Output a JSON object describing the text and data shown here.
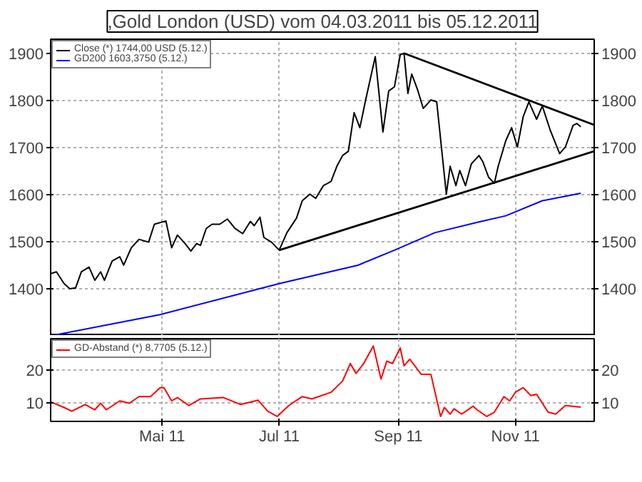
{
  "chart_data": [
    {
      "type": "line",
      "title": ",Gold London (USD) vom 04.03.2011 bis 05.12.2011",
      "legend": "top left",
      "grid": true,
      "tick_labels": "y",
      "xlim": [
        "2011-03-04",
        "2011-12-12"
      ],
      "xticks": [
        {
          "value": "2011-05-01",
          "label": null
        },
        {
          "value": "2011-07-01",
          "label": null
        },
        {
          "value": "2011-09-01",
          "label": null
        },
        {
          "value": "2011-11-01",
          "label": null
        }
      ],
      "ylim": [
        1300,
        1930
      ],
      "yticks": [
        1400,
        1500,
        1600,
        1700,
        1800,
        1900
      ],
      "y2lim": [
        1300,
        1930
      ],
      "y2ticks": [
        1400,
        1500,
        1600,
        1700,
        1800,
        1900
      ],
      "series": [
        {
          "name": "Close (*) 1744,00 USD (5.12.)",
          "color": "#000000",
          "x": [
            "2011-03-04",
            "2011-03-07",
            "2011-03-11",
            "2011-03-14",
            "2011-03-17",
            "2011-03-20",
            "2011-03-24",
            "2011-03-27",
            "2011-03-30",
            "2011-04-01",
            "2011-04-05",
            "2011-04-09",
            "2011-04-11",
            "2011-04-15",
            "2011-04-19",
            "2011-04-24",
            "2011-04-27",
            "2011-05-03",
            "2011-05-06",
            "2011-05-09",
            "2011-05-13",
            "2011-05-16",
            "2011-05-19",
            "2011-05-21",
            "2011-05-24",
            "2011-05-27",
            "2011-05-31",
            "2011-06-04",
            "2011-06-08",
            "2011-06-12",
            "2011-06-16",
            "2011-06-18",
            "2011-06-21",
            "2011-06-23",
            "2011-06-27",
            "2011-07-01",
            "2011-07-05",
            "2011-07-10",
            "2011-07-13",
            "2011-07-17",
            "2011-07-20",
            "2011-07-24",
            "2011-07-28",
            "2011-07-31",
            "2011-08-03",
            "2011-08-06",
            "2011-08-09",
            "2011-08-12",
            "2011-08-15",
            "2011-08-20",
            "2011-08-24",
            "2011-08-27",
            "2011-08-30",
            "2011-09-02",
            "2011-09-04",
            "2011-09-06",
            "2011-09-08",
            "2011-09-11",
            "2011-09-14",
            "2011-09-18",
            "2011-09-21",
            "2011-09-26",
            "2011-09-28",
            "2011-10-01",
            "2011-10-03",
            "2011-10-06",
            "2011-10-09",
            "2011-10-13",
            "2011-10-15",
            "2011-10-18",
            "2011-10-21",
            "2011-10-23",
            "2011-10-27",
            "2011-10-30",
            "2011-11-02",
            "2011-11-05",
            "2011-11-08",
            "2011-11-12",
            "2011-11-15",
            "2011-11-19",
            "2011-11-24",
            "2011-11-27",
            "2011-12-01",
            "2011-12-03",
            "2011-12-05"
          ],
          "values": [
            1432,
            1436,
            1411,
            1400,
            1402,
            1436,
            1446,
            1418,
            1436,
            1418,
            1459,
            1468,
            1450,
            1487,
            1505,
            1499,
            1537,
            1544,
            1487,
            1514,
            1496,
            1480,
            1496,
            1492,
            1528,
            1537,
            1537,
            1548,
            1528,
            1517,
            1543,
            1534,
            1552,
            1509,
            1499,
            1482,
            1519,
            1550,
            1587,
            1601,
            1592,
            1619,
            1628,
            1660,
            1683,
            1692,
            1774,
            1742,
            1801,
            1893,
            1733,
            1820,
            1829,
            1897,
            1900,
            1815,
            1856,
            1823,
            1783,
            1801,
            1797,
            1601,
            1660,
            1619,
            1651,
            1619,
            1665,
            1683,
            1670,
            1637,
            1624,
            1660,
            1715,
            1742,
            1701,
            1765,
            1797,
            1760,
            1788,
            1738,
            1687,
            1701,
            1747,
            1751,
            1744
          ]
        },
        {
          "name": "GD200 1603,3750 (5.12.)",
          "color": "#0000ff",
          "x": [
            "2011-03-04",
            "2011-04-30",
            "2011-07-01",
            "2011-08-11",
            "2011-08-30",
            "2011-09-20",
            "2011-10-13",
            "2011-10-27",
            "2011-11-15",
            "2011-12-05"
          ],
          "values": [
            1300,
            1345,
            1411,
            1450,
            1482,
            1519,
            1542,
            1555,
            1587,
            1603
          ]
        },
        {
          "type": "line",
          "color": "#000000",
          "x": [
            "2011-07-01",
            "2011-12-12"
          ],
          "values": [
            1482,
            1692
          ]
        },
        {
          "type": "line",
          "color": "#000000",
          "x": [
            "2011-09-04",
            "2011-12-12"
          ],
          "values": [
            1900,
            1748
          ]
        }
      ]
    },
    {
      "type": "line",
      "legend": "top left",
      "grid": true,
      "xlim": [
        "2011-03-04",
        "2011-12-12"
      ],
      "xticks": [
        {
          "value": "2011-05-01",
          "label": "Mai 11"
        },
        {
          "value": "2011-07-01",
          "label": "Jul 11"
        },
        {
          "value": "2011-09-01",
          "label": "Sep 11"
        },
        {
          "value": "2011-11-01",
          "label": "Nov 11"
        }
      ],
      "ylim": [
        4.5,
        29.5
      ],
      "yticks": [
        10,
        20
      ],
      "y2lim": [
        4.5,
        29.5
      ],
      "y2ticks": [
        10,
        20
      ],
      "series": [
        {
          "name": "GD-Abstand (*) 8,7705 (5.12.)",
          "color": "#ff0000",
          "x": [
            "2011-03-04",
            "2011-03-11",
            "2011-03-15",
            "2011-03-22",
            "2011-03-27",
            "2011-03-30",
            "2011-04-02",
            "2011-04-09",
            "2011-04-14",
            "2011-04-19",
            "2011-04-25",
            "2011-04-30",
            "2011-05-02",
            "2011-05-06",
            "2011-05-09",
            "2011-05-15",
            "2011-05-21",
            "2011-06-02",
            "2011-06-11",
            "2011-06-20",
            "2011-06-25",
            "2011-06-30",
            "2011-07-06",
            "2011-07-13",
            "2011-07-18",
            "2011-07-28",
            "2011-08-03",
            "2011-08-07",
            "2011-08-10",
            "2011-08-14",
            "2011-08-19",
            "2011-08-23",
            "2011-08-26",
            "2011-08-29",
            "2011-09-02",
            "2011-09-04",
            "2011-09-07",
            "2011-09-13",
            "2011-09-18",
            "2011-09-23",
            "2011-09-25",
            "2011-09-28",
            "2011-09-30",
            "2011-10-04",
            "2011-10-10",
            "2011-10-12",
            "2011-10-17",
            "2011-10-21",
            "2011-10-26",
            "2011-10-29",
            "2011-11-01",
            "2011-11-05",
            "2011-11-09",
            "2011-11-12",
            "2011-11-18",
            "2011-11-22",
            "2011-11-27",
            "2011-12-05"
          ],
          "values": [
            10.4,
            8.7,
            7.6,
            9.6,
            8.0,
            10,
            8.0,
            10.7,
            10,
            12,
            12,
            14.7,
            14.7,
            10.7,
            11.7,
            9.3,
            11.3,
            11.7,
            9.6,
            10.9,
            7.6,
            6.0,
            9.3,
            12,
            11.3,
            13.3,
            16.7,
            22,
            19,
            22,
            27.3,
            17.3,
            22.7,
            22,
            26.7,
            21.3,
            23.3,
            18.7,
            18.7,
            6,
            8.7,
            6.7,
            8.3,
            6.7,
            9.1,
            8.0,
            6,
            7.3,
            12,
            10.7,
            13.3,
            14.7,
            12.3,
            12.7,
            7.3,
            6.7,
            9.3,
            8.8
          ]
        }
      ]
    }
  ]
}
